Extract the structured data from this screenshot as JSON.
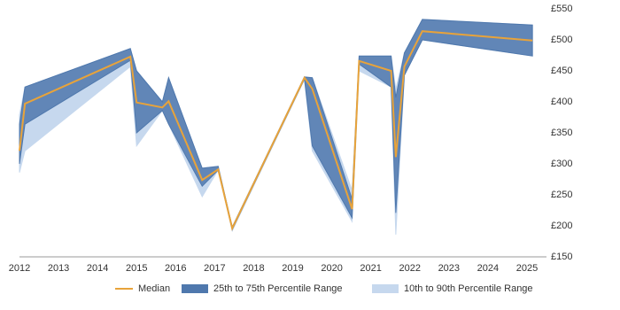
{
  "chart_data": {
    "type": "line",
    "x": [
      2012.0,
      2012.14,
      2014.84,
      2015.0,
      2015.66,
      2015.82,
      2016.68,
      2017.09,
      2017.45,
      2019.3,
      2019.5,
      2020.52,
      2020.7,
      2021.52,
      2021.64,
      2021.86,
      2022.32,
      2025.14
    ],
    "series": [
      {
        "name": "Median",
        "color": "#e8a33a",
        "values": [
          321,
          397,
          473,
          399,
          391,
          401,
          274,
          291,
          196,
          439,
          421,
          227,
          466,
          450,
          311,
          457,
          514,
          499
        ]
      },
      {
        "name": "25th to 75th Percentile Range",
        "color": "#4f78ad",
        "lower": [
          300,
          364,
          467,
          350,
          386,
          364,
          264,
          290,
          194,
          437,
          329,
          213,
          461,
          424,
          221,
          443,
          500,
          474
        ],
        "upper": [
          364,
          424,
          486,
          450,
          400,
          439,
          293,
          296,
          198,
          440,
          439,
          243,
          474,
          474,
          407,
          479,
          533,
          524
        ]
      },
      {
        "name": "10th to 90th Percentile Range",
        "color": "#c6d8ee",
        "lower": [
          286,
          321,
          457,
          329,
          386,
          364,
          247,
          290,
          192,
          436,
          321,
          207,
          450,
          424,
          186,
          443,
          500,
          474
        ],
        "upper": [
          379,
          424,
          486,
          450,
          400,
          439,
          293,
          296,
          198,
          441,
          439,
          257,
          474,
          474,
          421,
          479,
          533,
          524
        ]
      }
    ],
    "xlim": [
      2012,
      2025.5
    ],
    "xticks": [
      2012,
      2013,
      2014,
      2015,
      2016,
      2017,
      2018,
      2019,
      2020,
      2021,
      2022,
      2023,
      2024,
      2025
    ],
    "ylim": [
      150,
      550
    ],
    "yticks": [
      {
        "value": 150,
        "label": "£150"
      },
      {
        "value": 200,
        "label": "£200"
      },
      {
        "value": 250,
        "label": "£250"
      },
      {
        "value": 300,
        "label": "£300"
      },
      {
        "value": 350,
        "label": "£350"
      },
      {
        "value": 400,
        "label": "£400"
      },
      {
        "value": 450,
        "label": "£450"
      },
      {
        "value": 500,
        "label": "£500"
      },
      {
        "value": 550,
        "label": "£550"
      }
    ],
    "grid": true
  }
}
